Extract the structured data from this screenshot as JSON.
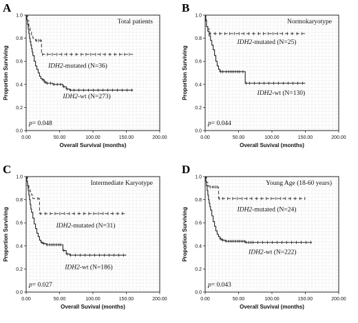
{
  "chart_data": [
    {
      "type": "line",
      "panel_letter": "A",
      "title": "Total patients",
      "xlabel": "Overall Survival (months)",
      "ylabel": "Proportion Surviving",
      "xlim": [
        0,
        200
      ],
      "ylim": [
        0,
        1
      ],
      "x_ticks": [
        "0.00",
        "50.00",
        "100.00",
        "150.00",
        "200.00"
      ],
      "y_ticks": [
        "0.0",
        "0.2",
        "0.4",
        "0.6",
        "0.8",
        "1.0"
      ],
      "p_value": {
        "prefix": "p",
        "text": "= 0.048"
      },
      "series": [
        {
          "name": "IDH2-mutated (N=36)",
          "name_italic": "IDH2",
          "name_rest": "-mutated (N=36)",
          "style": "dashed",
          "label_at": [
            33,
            0.545
          ],
          "x": [
            0,
            2,
            4,
            6,
            8,
            10,
            12,
            14,
            17,
            20,
            23,
            160
          ],
          "y": [
            1.0,
            0.95,
            0.9,
            0.86,
            0.82,
            0.8,
            0.79,
            0.78,
            0.78,
            0.78,
            0.66,
            0.66
          ]
        },
        {
          "name": "IDH2-wt (N=273)",
          "name_italic": "IDH2",
          "name_rest": "-wt (N=273)",
          "style": "solid",
          "label_at": [
            55,
            0.28
          ],
          "x": [
            0,
            1,
            2,
            3,
            4,
            5,
            6,
            7,
            8,
            9,
            10,
            12,
            14,
            16,
            18,
            20,
            22,
            24,
            27,
            30,
            35,
            40,
            45,
            50,
            55,
            60,
            65,
            70,
            160
          ],
          "y": [
            1.0,
            0.96,
            0.92,
            0.88,
            0.84,
            0.8,
            0.77,
            0.74,
            0.71,
            0.68,
            0.65,
            0.6,
            0.56,
            0.53,
            0.5,
            0.47,
            0.45,
            0.44,
            0.42,
            0.41,
            0.41,
            0.4,
            0.4,
            0.4,
            0.38,
            0.36,
            0.35,
            0.35,
            0.35
          ]
        }
      ]
    },
    {
      "type": "line",
      "panel_letter": "B",
      "title": "Normokaryotype",
      "xlabel": "Overall Suvival (months)",
      "ylabel": "Proportion Surviving",
      "xlim": [
        0,
        200
      ],
      "ylim": [
        0,
        1
      ],
      "x_ticks": [
        "0.00",
        "50.00",
        "100.00",
        "150.00",
        "200.00"
      ],
      "y_ticks": [
        "0.0",
        "0.2",
        "0.4",
        "0.6",
        "0.8",
        "1.0"
      ],
      "p_value": {
        "prefix": "p",
        "text": "= 0.044"
      },
      "series": [
        {
          "name": "IDH2-mutated (N=25)",
          "name_italic": "IDH2",
          "name_rest": "-mutated (N=25)",
          "style": "dashed",
          "label_at": [
            48,
            0.75
          ],
          "x": [
            0,
            2,
            4,
            6,
            150
          ],
          "y": [
            0.96,
            0.9,
            0.88,
            0.84,
            0.84
          ]
        },
        {
          "name": "IDH2-wt (N=130)",
          "name_italic": "IDH2",
          "name_rest": "-wt (N=130)",
          "style": "solid",
          "label_at": [
            78,
            0.31
          ],
          "x": [
            0,
            1,
            2,
            4,
            6,
            8,
            10,
            12,
            14,
            16,
            18,
            20,
            22,
            25,
            30,
            40,
            50,
            55,
            60,
            65,
            150
          ],
          "y": [
            1.0,
            0.95,
            0.9,
            0.86,
            0.82,
            0.78,
            0.74,
            0.7,
            0.65,
            0.6,
            0.56,
            0.53,
            0.51,
            0.51,
            0.51,
            0.51,
            0.51,
            0.51,
            0.41,
            0.41,
            0.41
          ]
        }
      ]
    },
    {
      "type": "line",
      "panel_letter": "C",
      "title": "Intermediate Karyotype",
      "xlabel": "Overall Suvival (months)",
      "ylabel": "Proportion Surviving",
      "xlim": [
        0,
        200
      ],
      "ylim": [
        0,
        1
      ],
      "x_ticks": [
        "0.00",
        "50.00",
        "100.00",
        "150.00",
        "200.00"
      ],
      "y_ticks": [
        "0.0",
        "0.2",
        "0.4",
        "0.6",
        "0.8",
        "1.0"
      ],
      "p_value": {
        "prefix": "p",
        "text": "= 0.027"
      },
      "series": [
        {
          "name": "IDH2-mutated (N=31)",
          "name_italic": "IDH2",
          "name_rest": "-mutated (N=31)",
          "style": "dashed",
          "label_at": [
            45,
            0.56
          ],
          "x": [
            0,
            2,
            4,
            6,
            8,
            10,
            12,
            14,
            16,
            20,
            150
          ],
          "y": [
            1.0,
            0.94,
            0.9,
            0.87,
            0.84,
            0.81,
            0.81,
            0.81,
            0.81,
            0.68,
            0.68
          ]
        },
        {
          "name": "IDH2-wt (N=186)",
          "name_italic": "IDH2",
          "name_rest": "-wt (N=186)",
          "style": "solid",
          "label_at": [
            58,
            0.2
          ],
          "x": [
            0,
            1,
            2,
            3,
            4,
            5,
            6,
            7,
            8,
            10,
            12,
            14,
            16,
            18,
            20,
            22,
            25,
            30,
            40,
            50,
            55,
            60,
            65,
            150
          ],
          "y": [
            1.0,
            0.96,
            0.92,
            0.88,
            0.84,
            0.8,
            0.76,
            0.72,
            0.69,
            0.64,
            0.59,
            0.55,
            0.51,
            0.48,
            0.45,
            0.43,
            0.42,
            0.41,
            0.41,
            0.41,
            0.36,
            0.33,
            0.32,
            0.32
          ]
        }
      ]
    },
    {
      "type": "line",
      "panel_letter": "D",
      "title": "Young Age (18-60 years)",
      "xlabel": "Overall Suvival (months)",
      "ylabel": "Proportion Surviving",
      "xlim": [
        0,
        200
      ],
      "ylim": [
        0,
        1
      ],
      "x_ticks": [
        "0.00",
        "50.00",
        "100.00",
        "150.00",
        "200.00"
      ],
      "y_ticks": [
        "0.0",
        "0.2",
        "0.4",
        "0.6",
        "0.8",
        "1.0"
      ],
      "p_value": {
        "prefix": "p",
        "text": "= 0.043"
      },
      "series": [
        {
          "name": "IDH2-mutated (N=24)",
          "name_italic": "IDH2",
          "name_rest": "-mutated (N=24)",
          "style": "dashed",
          "label_at": [
            48,
            0.7
          ],
          "x": [
            0,
            2,
            4,
            6,
            10,
            16,
            20,
            25,
            150
          ],
          "y": [
            1.0,
            0.95,
            0.92,
            0.91,
            0.91,
            0.91,
            0.81,
            0.81,
            0.81
          ]
        },
        {
          "name": "IDH2-wt (N=222)",
          "name_italic": "IDH2",
          "name_rest": "-wt (N=222)",
          "style": "solid",
          "label_at": [
            65,
            0.33
          ],
          "x": [
            0,
            1,
            2,
            3,
            4,
            5,
            6,
            7,
            8,
            10,
            12,
            14,
            16,
            18,
            20,
            22,
            25,
            30,
            40,
            50,
            60,
            70,
            160
          ],
          "y": [
            1.0,
            0.96,
            0.92,
            0.88,
            0.84,
            0.8,
            0.77,
            0.74,
            0.71,
            0.66,
            0.61,
            0.57,
            0.53,
            0.5,
            0.48,
            0.46,
            0.45,
            0.44,
            0.44,
            0.44,
            0.43,
            0.43,
            0.43
          ]
        }
      ]
    }
  ]
}
